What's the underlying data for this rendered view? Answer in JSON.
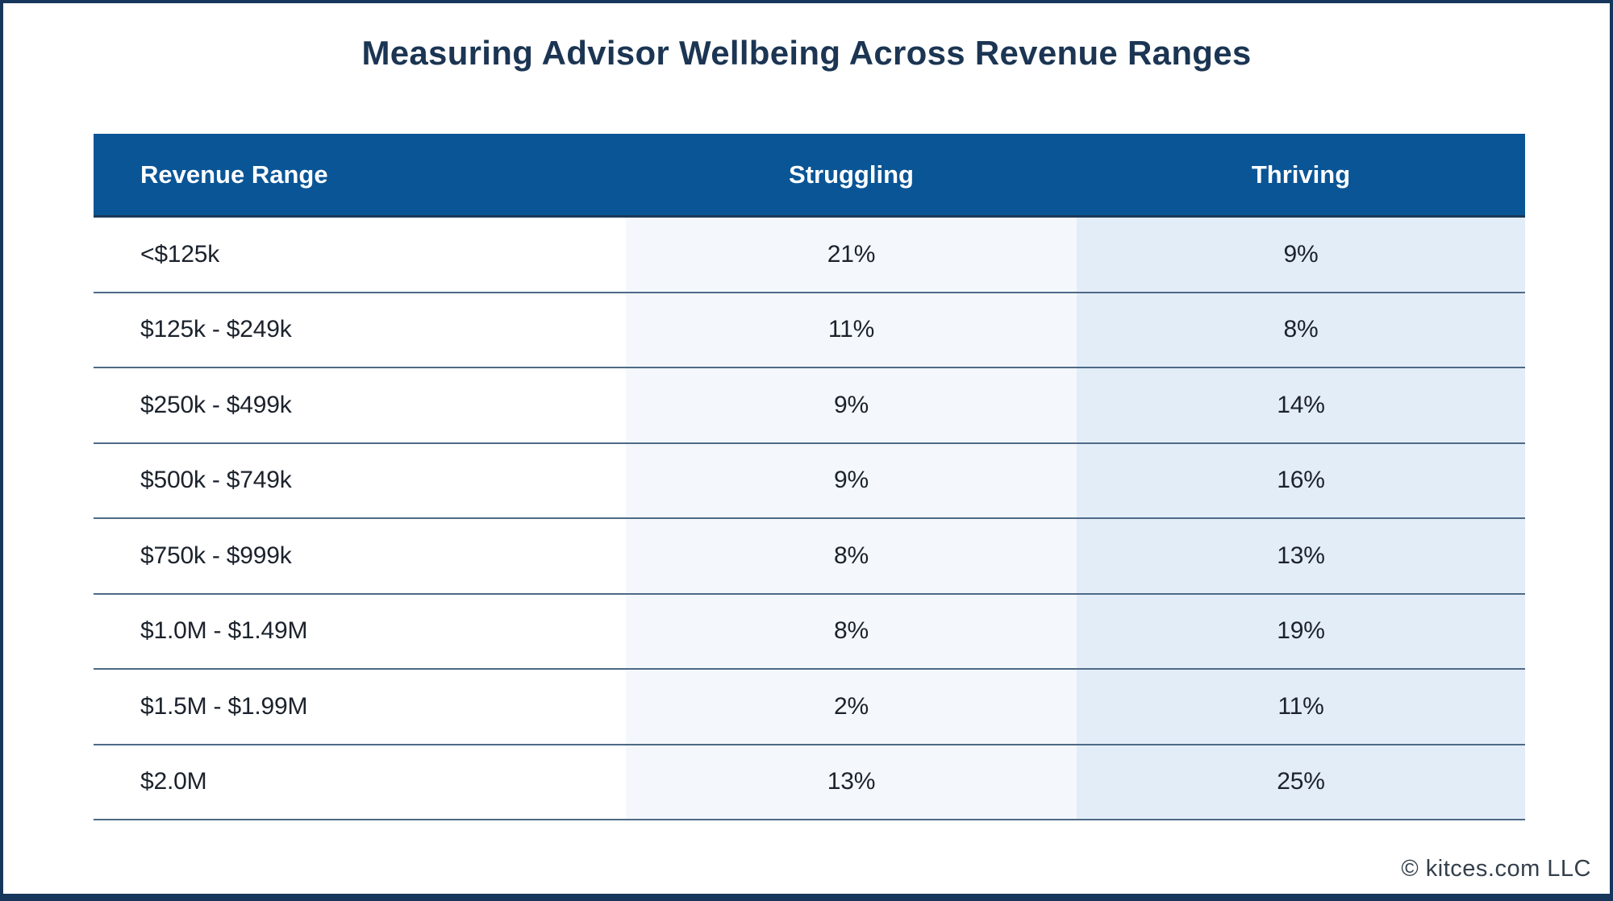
{
  "title": "Measuring Advisor Wellbeing Across Revenue Ranges",
  "footer": {
    "copyright": "© kitces.com LLC"
  },
  "colors": {
    "header_bg": "#0A5596",
    "frame_border": "#16365C",
    "title_text": "#1B3553",
    "header_text": "#FFFFFF",
    "struggling_column_bg": "#F4F8FC",
    "thriving_column_bg": "#E3EDF8",
    "row_divider": "#4E6A86",
    "body_text": "#1B222C"
  },
  "table": {
    "columns": [
      "Revenue Range",
      "Struggling",
      "Thriving"
    ],
    "rows": [
      {
        "range": "<$125k",
        "struggling": "21%",
        "thriving": "9%"
      },
      {
        "range": "$125k - $249k",
        "struggling": "11%",
        "thriving": "8%"
      },
      {
        "range": "$250k - $499k",
        "struggling": "9%",
        "thriving": "14%"
      },
      {
        "range": "$500k - $749k",
        "struggling": "9%",
        "thriving": "16%"
      },
      {
        "range": "$750k - $999k",
        "struggling": "8%",
        "thriving": "13%"
      },
      {
        "range": "$1.0M - $1.49M",
        "struggling": "8%",
        "thriving": "19%"
      },
      {
        "range": "$1.5M - $1.99M",
        "struggling": "2%",
        "thriving": "11%"
      },
      {
        "range": "$2.0M",
        "struggling": "13%",
        "thriving": "25%"
      }
    ]
  },
  "chart_data": {
    "type": "table",
    "title": "Measuring Advisor Wellbeing Across Revenue Ranges",
    "columns": [
      "Revenue Range",
      "Struggling",
      "Thriving"
    ],
    "categories": [
      "<$125k",
      "$125k - $249k",
      "$250k - $499k",
      "$500k - $749k",
      "$750k - $999k",
      "$1.0M - $1.49M",
      "$1.5M - $1.99M",
      "$2.0M"
    ],
    "series": [
      {
        "name": "Struggling",
        "unit": "%",
        "values": [
          21,
          11,
          9,
          9,
          8,
          8,
          2,
          13
        ]
      },
      {
        "name": "Thriving",
        "unit": "%",
        "values": [
          9,
          8,
          14,
          16,
          13,
          19,
          11,
          25
        ]
      }
    ],
    "legend_position": "none",
    "grid": "horizontal-row-dividers"
  }
}
